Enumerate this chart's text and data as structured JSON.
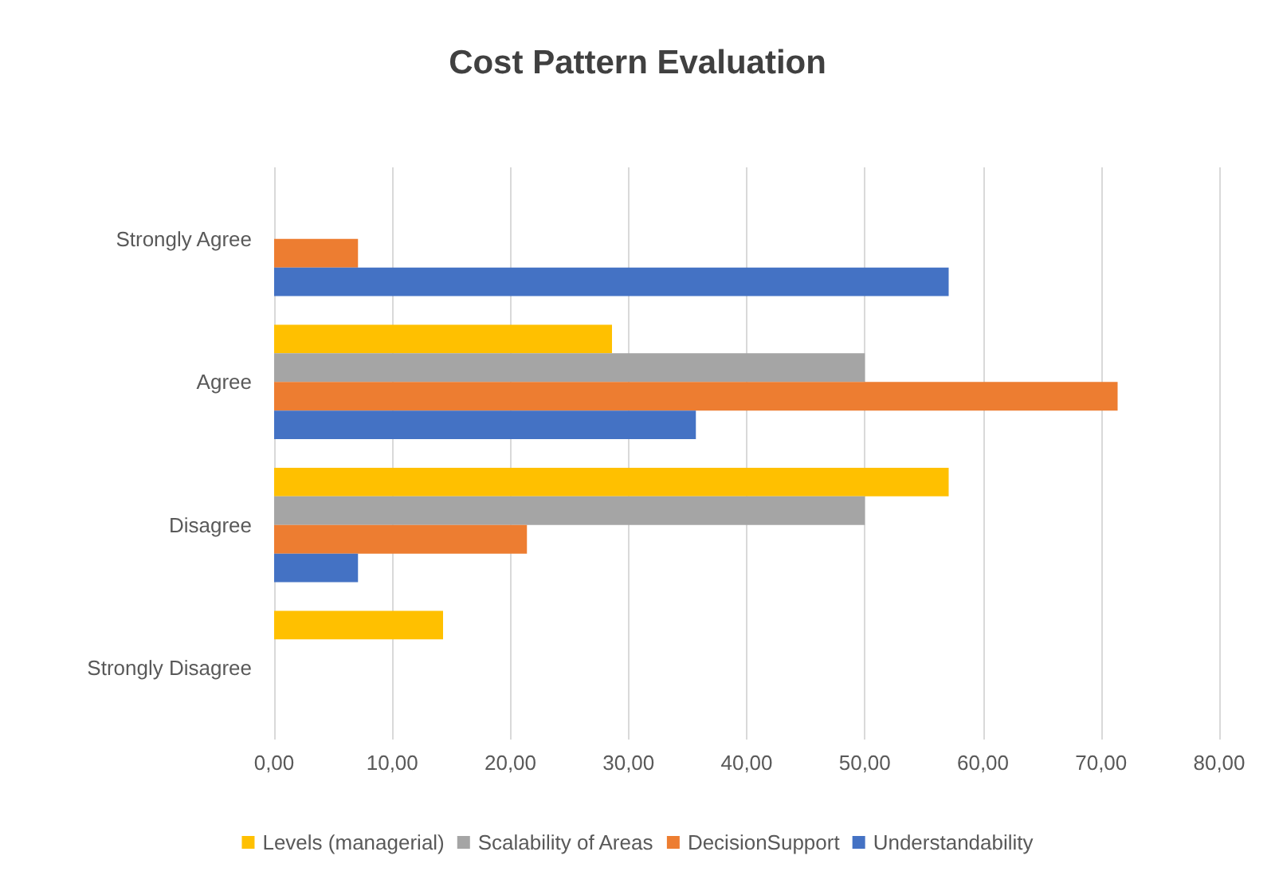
{
  "chart_data": {
    "type": "bar",
    "orientation": "horizontal",
    "title": "Cost Pattern Evaluation",
    "categories": [
      "Strongly Agree",
      "Agree",
      "Disagree",
      "Strongly Disagree"
    ],
    "series": [
      {
        "name": "Levels (managerial)",
        "color": "#ffc000",
        "values": [
          0,
          28.6,
          57.1,
          14.3
        ]
      },
      {
        "name": "Scalability of Areas",
        "color": "#a5a5a5",
        "values": [
          0,
          50,
          50,
          0
        ]
      },
      {
        "name": "DecisionSupport",
        "color": "#ed7d31",
        "values": [
          7.1,
          71.4,
          21.4,
          0
        ]
      },
      {
        "name": "Understandability",
        "color": "#4472c4",
        "values": [
          57.1,
          35.7,
          7.1,
          0
        ]
      }
    ],
    "xlim": [
      0,
      80
    ],
    "xticks": [
      {
        "value": 0,
        "label": "0,00"
      },
      {
        "value": 10,
        "label": "10,00"
      },
      {
        "value": 20,
        "label": "20,00"
      },
      {
        "value": 30,
        "label": "30,00"
      },
      {
        "value": 40,
        "label": "40,00"
      },
      {
        "value": 50,
        "label": "50,00"
      },
      {
        "value": 60,
        "label": "60,00"
      },
      {
        "value": 70,
        "label": "70,00"
      },
      {
        "value": 80,
        "label": "80,00"
      }
    ],
    "grid": "x",
    "legend": "bottom"
  }
}
